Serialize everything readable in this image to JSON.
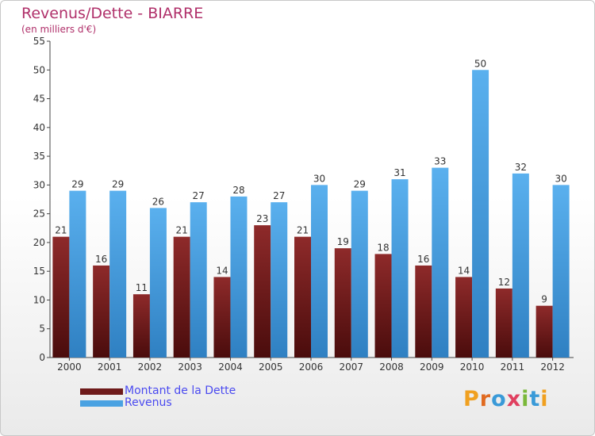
{
  "header": {
    "title": "Revenus/Dette - BIARRE",
    "subtitle": "(en milliers d'€)"
  },
  "brand": {
    "text": "Proxiti",
    "letters": [
      {
        "ch": "P",
        "color": "#f0a020"
      },
      {
        "ch": "r",
        "color": "#e06a20"
      },
      {
        "ch": "o",
        "color": "#3a9ad8"
      },
      {
        "ch": "x",
        "color": "#e04060"
      },
      {
        "ch": "i",
        "color": "#7ab83a"
      },
      {
        "ch": "t",
        "color": "#3a9ad8"
      },
      {
        "ch": "i",
        "color": "#f0a020"
      }
    ]
  },
  "legend": {
    "items": [
      {
        "label": "Montant de la Dette",
        "color": "#6e1a1a"
      },
      {
        "label": "Revenus",
        "color": "#4aa2e2"
      }
    ]
  },
  "chart_data": {
    "type": "bar",
    "title": "Revenus/Dette - BIARRE",
    "subtitle": "(en milliers d'€)",
    "categories": [
      "2000",
      "2001",
      "2002",
      "2003",
      "2004",
      "2005",
      "2006",
      "2007",
      "2008",
      "2009",
      "2010",
      "2011",
      "2012"
    ],
    "series": [
      {
        "name": "Montant de la Dette",
        "color": "#7a1e1e",
        "values": [
          21,
          16,
          11,
          21,
          14,
          23,
          21,
          19,
          18,
          16,
          14,
          12,
          9
        ]
      },
      {
        "name": "Revenus",
        "color": "#4aa2e2",
        "values": [
          29,
          29,
          26,
          27,
          28,
          27,
          30,
          29,
          31,
          33,
          50,
          32,
          30
        ]
      }
    ],
    "ylim": [
      0,
      55
    ],
    "yticks": [
      0,
      5,
      10,
      15,
      20,
      25,
      30,
      35,
      40,
      45,
      50,
      55
    ],
    "grid": false,
    "legend_position": "bottom-left"
  }
}
